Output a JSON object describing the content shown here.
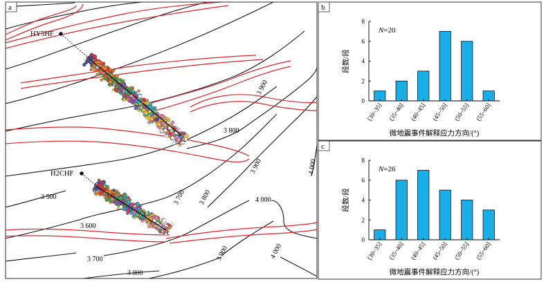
{
  "panels": {
    "a": {
      "tag": "a"
    },
    "b": {
      "tag": "b"
    },
    "c": {
      "tag": "c"
    }
  },
  "map": {
    "wells": [
      {
        "name": "HY5HF"
      },
      {
        "name": "H2CHF"
      }
    ],
    "contour_labels": [
      "3 500",
      "3 600",
      "3 700",
      "3 700",
      "3 800",
      "3 800",
      "3 800",
      "3 900",
      "3 900",
      "3 900",
      "4 000",
      "4 000",
      "4 000"
    ],
    "colors": {
      "contour": "#111111",
      "fault": "#e0202a",
      "well_path": "#111111",
      "event_palette": [
        "#3b4fa8",
        "#e2323a",
        "#f07f2a",
        "#4aa84a",
        "#9a4fb0",
        "#2fb2c0",
        "#f2c53c",
        "#e57bb0",
        "#ffffff",
        "#8c6a3b"
      ]
    }
  },
  "chart_data": [
    {
      "panel": "b",
      "type": "bar",
      "categories": [
        "[30~35]",
        "(35~40]",
        "(40~45]",
        "(45~50]",
        "(50~55]",
        "(55~60]"
      ],
      "values": [
        1,
        2,
        3,
        7,
        6,
        1
      ],
      "n_label": "N=20",
      "xlabel": "微地震事件解释应力方向/(°)",
      "ylabel": "段数/段",
      "ylim": [
        0,
        8
      ],
      "yticks": [
        0,
        2,
        4,
        6,
        8
      ],
      "bar_color": "#19aee8"
    },
    {
      "panel": "c",
      "type": "bar",
      "categories": [
        "[30~35]",
        "(35~40]",
        "(40~45]",
        "(45~50]",
        "(50~55]",
        "(55~60]"
      ],
      "values": [
        1,
        6,
        7,
        5,
        4,
        3
      ],
      "n_label": "N=26",
      "xlabel": "微地震事件解释应力方向/(°)",
      "ylabel": "段数/段",
      "ylim": [
        0,
        8
      ],
      "yticks": [
        0,
        2,
        4,
        6,
        8
      ],
      "bar_color": "#19aee8"
    }
  ]
}
